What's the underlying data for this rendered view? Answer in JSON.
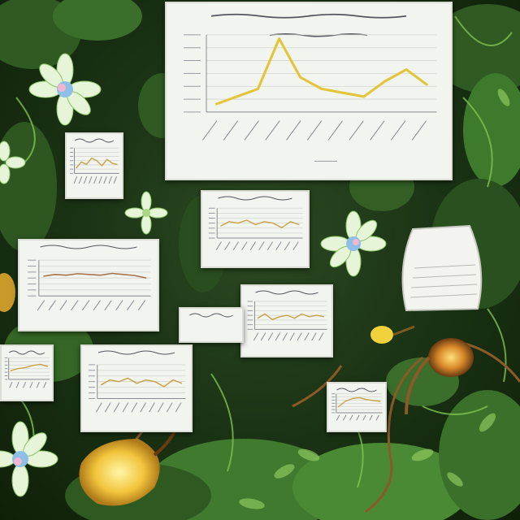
{
  "scene": {
    "palette": {
      "foliage_dark": "#1c3516",
      "foliage_mid": "#3f7a2e",
      "foliage_light": "#7fc24f",
      "card_paper": "#f2f4ef",
      "card_border": "#d9ddd4",
      "line_yellow": "#e2c53a",
      "line_tan": "#c9a24a",
      "line_brown": "#a5744a",
      "lamp_yellow": "#f2d23c",
      "flower_petal": "#e6f5d8",
      "flower_center": "#8fbfe6"
    },
    "elements": [
      "jungle-foliage",
      "chart-cards",
      "flowers",
      "glowing-lamps",
      "paper-scroll",
      "vines"
    ]
  },
  "chart_data": [
    {
      "type": "line",
      "x": [
        1,
        2,
        3,
        4,
        5,
        6,
        7,
        8,
        9,
        10,
        11
      ],
      "series": [
        {
          "values": [
            10,
            20,
            30,
            95,
            45,
            30,
            25,
            20,
            40,
            55,
            35
          ]
        }
      ],
      "ylim": [
        0,
        100
      ],
      "grid": true
    },
    {
      "type": "line",
      "x": [
        1,
        2,
        3,
        4,
        5,
        6,
        7,
        8,
        9
      ],
      "series": [
        {
          "values": [
            20,
            45,
            35,
            60,
            50,
            30,
            55,
            40,
            35
          ]
        }
      ],
      "ylim": [
        0,
        100
      ],
      "grid": true
    },
    {
      "type": "line",
      "x": [
        1,
        2,
        3,
        4,
        5,
        6,
        7,
        8,
        9,
        10
      ],
      "series": [
        {
          "values": [
            55,
            60,
            58,
            62,
            60,
            58,
            63,
            60,
            57,
            50
          ]
        }
      ],
      "ylim": [
        0,
        100
      ],
      "grid": true
    },
    {
      "type": "line",
      "x": [
        1,
        2,
        3,
        4,
        5,
        6,
        7,
        8,
        9,
        10
      ],
      "series": [
        {
          "values": [
            40,
            55,
            35,
            45,
            50,
            40,
            55,
            45,
            50,
            45
          ]
        }
      ],
      "ylim": [
        0,
        100
      ],
      "grid": true
    },
    {
      "type": "line",
      "x": [
        1,
        2,
        3,
        4,
        5,
        6,
        7,
        8,
        9,
        10
      ],
      "series": [
        {
          "values": [
            40,
            55,
            50,
            60,
            45,
            55,
            50,
            35,
            55,
            45
          ]
        }
      ],
      "ylim": [
        0,
        100
      ],
      "grid": true
    },
    {
      "type": "line",
      "x": [
        1,
        2,
        3,
        4,
        5,
        6
      ],
      "series": [
        {
          "values": [
            50,
            60,
            70,
            55,
            45,
            40
          ]
        }
      ],
      "ylim": [
        0,
        100
      ],
      "grid": true
    },
    {
      "type": "line",
      "x": [
        1,
        2,
        3,
        4,
        5,
        6
      ],
      "series": [
        {
          "values": [
            40,
            50,
            55,
            65,
            70,
            60
          ]
        }
      ],
      "ylim": [
        0,
        100
      ],
      "grid": true
    },
    {
      "type": "line",
      "x": [
        1,
        2,
        3,
        4,
        5,
        6,
        7
      ],
      "series": [
        {
          "values": [
            30,
            60,
            75,
            80,
            70,
            65,
            60
          ]
        }
      ],
      "ylim": [
        0,
        100
      ],
      "grid": true
    }
  ]
}
